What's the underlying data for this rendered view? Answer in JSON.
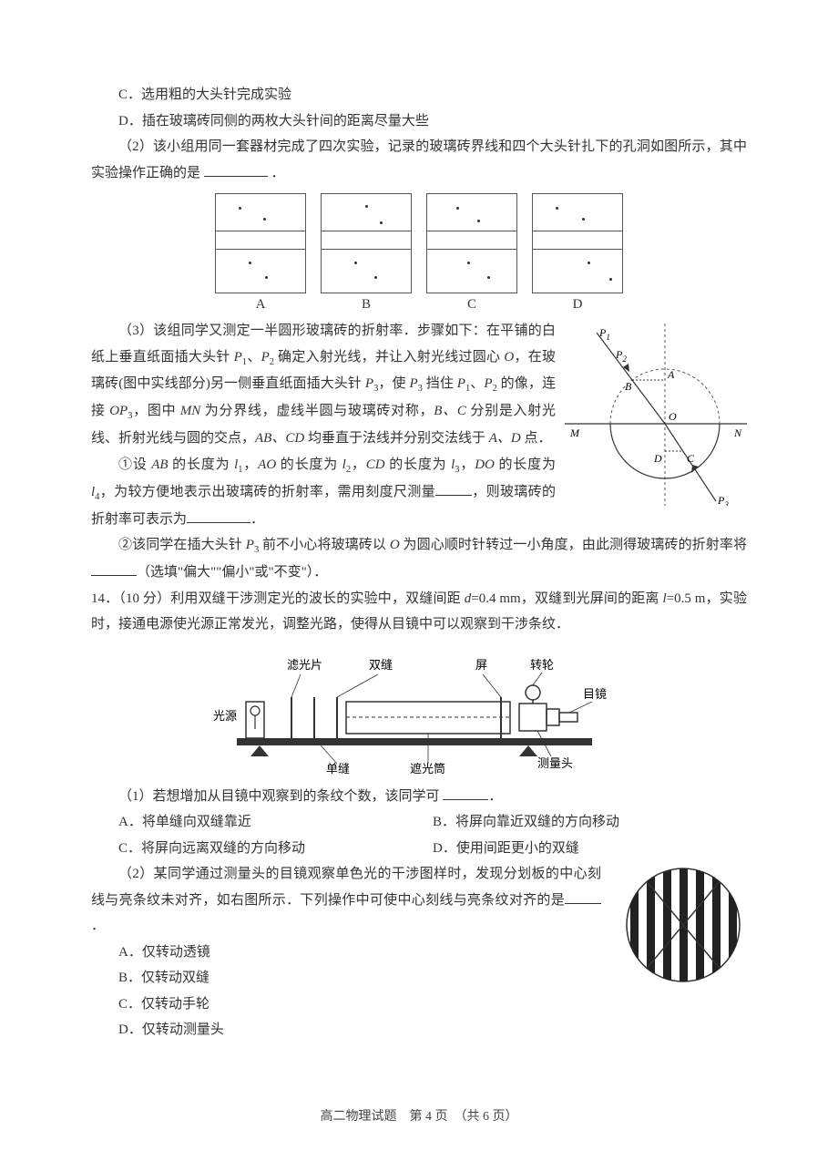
{
  "q13": {
    "optC": "C．选用粗的大头针完成实验",
    "optD": "D．插在玻璃砖同侧的两枚大头针间的距离尽量大些",
    "part2_a": "（2）该小组用同一套器材完成了四次实验，记录的玻璃砖界线和四个大头针扎下的孔洞如图所示，其中实验操作正确的是",
    "part2_b": "．",
    "diagrams": {
      "h1": 40,
      "h2": 60,
      "A": {
        "dots": [
          [
            25,
            14
          ],
          [
            52,
            26
          ],
          [
            36,
            74
          ],
          [
            54,
            90
          ]
        ]
      },
      "B": {
        "dots": [
          [
            48,
            12
          ],
          [
            64,
            30
          ],
          [
            36,
            74
          ],
          [
            58,
            90
          ]
        ]
      },
      "C": {
        "dots": [
          [
            32,
            14
          ],
          [
            55,
            28
          ],
          [
            44,
            74
          ],
          [
            66,
            90
          ]
        ]
      },
      "D": {
        "dots": [
          [
            25,
            14
          ],
          [
            54,
            26
          ],
          [
            60,
            74
          ],
          [
            84,
            92
          ]
        ]
      },
      "labels": [
        "A",
        "B",
        "C",
        "D"
      ]
    },
    "part3_a": "（3）该组同学又测定一半圆形玻璃砖的折射率．步骤如下：在平铺的白纸上垂直纸面插大头针 ",
    "part3_b": "、",
    "part3_c": " 确定入射光线，并让入射光线过圆心 ",
    "part3_o": "O",
    "part3_d": "，在玻璃砖(图中实线部分)另一侧垂直纸面插大头针 ",
    "part3_e": "，使 ",
    "part3_f": " 挡住 ",
    "part3_g": " 的像，连接 ",
    "part3_op3": "OP",
    "part3_h": "，图中 ",
    "part3_mn": "MN",
    "part3_i": " 为分界线，虚线半圆与玻璃砖对称，",
    "part3_j": "B、C",
    "part3_k": " 分别是入射光线、折射光线与圆的交点，",
    "part3_l": "AB、CD",
    "part3_m": " 均垂直于法线并分别交法线于 ",
    "part3_n": "A、D",
    "part3_p": " 点．",
    "p1": "P",
    "s1": "1",
    "p2": "P",
    "s2": "2",
    "p3": "P",
    "s3": "3",
    "sub1_a": "①设 ",
    "sub1_ab": "AB",
    "sub1_b": " 的长度为 ",
    "sub1_l1": "l",
    "sub1_c": "，",
    "sub1_ao": "AO",
    "sub1_d": " 的长度为 ",
    "sub1_l2": "l",
    "sub1_e": "，",
    "sub1_cd": "CD",
    "sub1_f": " 的长度为 ",
    "sub1_l3": "l",
    "sub1_g": "，",
    "sub1_do": "DO",
    "sub1_h": " 的长度为 ",
    "sub1_l4": "l",
    "sub1_i": "，为较方便地表示出玻璃砖的折射率，需用刻度尺测量",
    "sub1_j": "，则玻璃砖的折射率可表示为",
    "sub1_k": "．",
    "sub2_a": "②该同学在插大头针 ",
    "sub2_b": " 前不小心将玻璃砖以 ",
    "sub2_c": "O",
    "sub2_d": " 为圆心顺时针转过一小角度，由此测得玻璃砖的折射率将",
    "sub2_e": "（选填\"偏大\"\"偏小\"或\"不变\"）．",
    "fig3": {
      "labels": {
        "P1": "P",
        "P2": "P",
        "P3": "P",
        "A": "A",
        "B": "B",
        "C": "C",
        "D": "D",
        "O": "O",
        "M": "M",
        "N": "N"
      },
      "colors": {
        "stroke": "#333",
        "dash": "#555"
      }
    }
  },
  "q14": {
    "header_a": "14．（10 分）利用双缝干涉测定光的波长的实验中，双缝间距 ",
    "header_d": "d",
    "header_b": "=0.4 mm，双缝到光屏间的距离 ",
    "header_l": "l",
    "header_c": "=0.5 m，实验时，接通电源使光源正常发光，调整光路，使得从目镜中可以观察到干涉条纹．",
    "fig": {
      "labels": {
        "filter": "滤光片",
        "double_slit": "双缝",
        "screen": "屏",
        "wheel": "转轮",
        "source": "光源",
        "eyepiece": "目镜",
        "single_slit": "单缝",
        "tube": "遮光筒",
        "head": "测量头"
      },
      "colors": {
        "stroke": "#333",
        "fill": "#fff"
      }
    },
    "part1_a": "（1）若想增加从目镜中观察到的条纹个数，该同学可 ",
    "part1_b": "．",
    "optA": "A．将单缝向双缝靠近",
    "optB": "B．将屏向靠近双缝的方向移动",
    "optC": "C．将屏向远离双缝的方向移动",
    "optD": "D．使用间距更小的双缝",
    "part2_a": "（2）某同学通过测量头的目镜观察单色光的干涉图样时，发现分划板的中心刻线与亮条纹未对齐，如右图所示．下列操作中可使中心刻线与亮条纹对齐的是",
    "part2_b": "．",
    "opt2A": "A．仅转动透镜",
    "opt2B": "B．仅转动双缝",
    "opt2C": "C．仅转动手轮",
    "opt2D": "D．仅转动测量头",
    "crossfig": {
      "stripe": "#222",
      "bg": "#fff",
      "line": "#333"
    }
  },
  "footer": "高二物理试题　第 4 页　（共 6 页）"
}
